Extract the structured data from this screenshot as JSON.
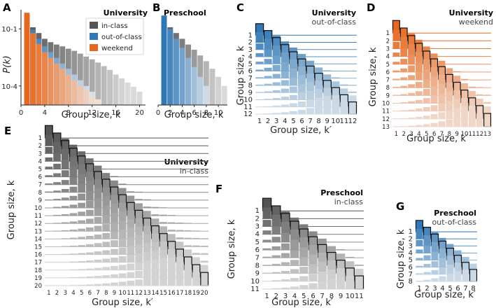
{
  "colors": {
    "in_class": "#555555",
    "out_of_class": "#2e78b7",
    "weekend": "#e8671c"
  },
  "chart_data": [
    {
      "id": "A",
      "panel_label": "A",
      "type": "bar",
      "title": "University",
      "xlabel": "Group size, k",
      "ylabel": "P(k)",
      "yscale": "log",
      "ylim": [
        1e-05,
        1
      ],
      "yticks": [
        "10^-1",
        "10^-4"
      ],
      "xlim": [
        0,
        21
      ],
      "xticks": [
        0,
        4,
        8,
        12,
        16,
        20
      ],
      "legend": {
        "placement": "top-right",
        "entries": [
          "in-class",
          "out-of-class",
          "weekend"
        ]
      },
      "series": [
        {
          "name": "in-class",
          "x": [
            1,
            2,
            3,
            4,
            5,
            6,
            7,
            8,
            9,
            10,
            11,
            12,
            13,
            14,
            15,
            16,
            17,
            18,
            19,
            20
          ],
          "values": [
            0.3,
            0.12,
            0.06,
            0.03,
            0.02,
            0.015,
            0.012,
            0.009,
            0.007,
            0.005,
            0.0035,
            0.0025,
            0.0017,
            0.0011,
            0.0007,
            0.0004,
            0.00025,
            0.00015,
            9e-05,
            5e-05
          ]
        },
        {
          "name": "out-of-class",
          "x": [
            1,
            2,
            3,
            4,
            5,
            6,
            7,
            8,
            9,
            10,
            11,
            12
          ],
          "values": [
            0.55,
            0.09,
            0.03,
            0.012,
            0.006,
            0.003,
            0.0015,
            0.0008,
            0.0004,
            0.0002,
            0.0001,
            5e-05
          ]
        },
        {
          "name": "weekend",
          "x": [
            1,
            2,
            3,
            4,
            5,
            6,
            7,
            8,
            9,
            10,
            11,
            12,
            13
          ],
          "values": [
            0.7,
            0.06,
            0.016,
            0.006,
            0.003,
            0.0015,
            0.0008,
            0.0004,
            0.0002,
            0.0001,
            6e-05,
            3e-05,
            2e-05
          ]
        }
      ]
    },
    {
      "id": "B",
      "panel_label": "B",
      "type": "bar",
      "title": "Preschool",
      "xlabel": "Group size, k",
      "yscale": "log",
      "xlim": [
        0,
        11.5
      ],
      "xticks": [
        0,
        2,
        4,
        6,
        8,
        10
      ],
      "series": [
        {
          "name": "in-class",
          "x": [
            1,
            2,
            3,
            4,
            5,
            6,
            7,
            8,
            9,
            10,
            11
          ],
          "values": [
            0.3,
            0.12,
            0.06,
            0.03,
            0.015,
            0.008,
            0.004,
            0.002,
            0.0008,
            0.0003,
            0.0001
          ]
        },
        {
          "name": "out-of-class",
          "x": [
            1,
            2,
            3,
            4,
            5,
            6,
            7,
            8
          ],
          "values": [
            0.5,
            0.1,
            0.03,
            0.01,
            0.003,
            0.001,
            0.0003,
            0.0001
          ]
        }
      ]
    },
    {
      "id": "C",
      "panel_label": "C",
      "type": "ridgeline",
      "title": "University",
      "subtitle": "out-of-class",
      "xlabel": "Group size, k′",
      "ylabel": "Group size, k",
      "n": 12,
      "series_color": "out_of_class"
    },
    {
      "id": "D",
      "panel_label": "D",
      "type": "ridgeline",
      "title": "University",
      "subtitle": "weekend",
      "xlabel": "Group size, k′",
      "ylabel": "Group size, k",
      "n": 13,
      "series_color": "weekend"
    },
    {
      "id": "E",
      "panel_label": "E",
      "type": "ridgeline",
      "title": "University",
      "subtitle": "in-class",
      "xlabel": "Group size, k′",
      "ylabel": "Group size, k",
      "n": 20,
      "series_color": "in_class"
    },
    {
      "id": "F",
      "panel_label": "F",
      "type": "ridgeline",
      "title": "Preschool",
      "subtitle": "in-class",
      "xlabel": "Group size, k′",
      "ylabel": "Group size, k",
      "n": 11,
      "series_color": "in_class"
    },
    {
      "id": "G",
      "panel_label": "G",
      "type": "ridgeline",
      "title": "Preschool",
      "subtitle": "out-of-class",
      "xlabel": "Group size, k′",
      "ylabel": "Group size, k",
      "n": 8,
      "series_color": "out_of_class"
    }
  ]
}
